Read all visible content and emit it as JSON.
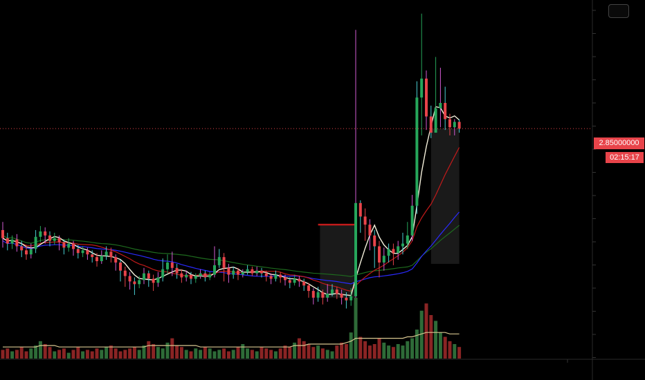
{
  "chart_data": {
    "type": "candlestick",
    "title": "",
    "current_price": "2.85000000",
    "countdown": "02:15:17",
    "price_line_value": 2.85,
    "ylim": [
      1.4,
      3.75
    ],
    "colors": {
      "up": "#26a65b",
      "down": "#e8444a",
      "wick_pink": "#d45bd4",
      "wick_cyan": "#49d0d4",
      "ma_fast": "#f5f0dc",
      "ma_red": "#c21a1a",
      "ma_blue": "#2a2aff",
      "ma_green": "#1e6b1e",
      "volume_ma": "#d8c690",
      "price_line": "#e8444a"
    },
    "candles": [
      [
        2.1,
        2.04,
        2.16,
        1.97
      ],
      [
        2.04,
        2.0,
        2.08,
        1.95
      ],
      [
        2.0,
        2.03,
        2.06,
        1.96
      ],
      [
        2.03,
        1.98,
        2.07,
        1.94
      ],
      [
        1.98,
        1.95,
        2.02,
        1.9
      ],
      [
        1.95,
        1.92,
        1.99,
        1.88
      ],
      [
        1.92,
        1.96,
        2.0,
        1.89
      ],
      [
        1.96,
        2.05,
        2.1,
        1.93
      ],
      [
        2.05,
        2.09,
        2.13,
        2.01
      ],
      [
        2.09,
        2.06,
        2.12,
        2.0
      ],
      [
        2.06,
        2.02,
        2.09,
        1.98
      ],
      [
        2.02,
        2.04,
        2.08,
        1.99
      ],
      [
        2.04,
        2.01,
        2.06,
        1.95
      ],
      [
        2.01,
        1.97,
        2.03,
        1.92
      ],
      [
        1.97,
        2.0,
        2.04,
        1.94
      ],
      [
        2.0,
        1.96,
        2.02,
        1.91
      ],
      [
        1.96,
        1.93,
        1.99,
        1.89
      ],
      [
        1.93,
        1.95,
        1.98,
        1.9
      ],
      [
        1.95,
        1.92,
        1.97,
        1.88
      ],
      [
        1.92,
        1.9,
        1.95,
        1.86
      ],
      [
        1.9,
        1.87,
        1.93,
        1.83
      ],
      [
        1.87,
        1.91,
        1.95,
        1.85
      ],
      [
        1.91,
        1.94,
        1.98,
        1.88
      ],
      [
        1.94,
        1.9,
        1.97,
        1.86
      ],
      [
        1.9,
        1.86,
        1.92,
        1.8
      ],
      [
        1.86,
        1.8,
        1.88,
        1.72
      ],
      [
        1.8,
        1.76,
        1.83,
        1.68
      ],
      [
        1.76,
        1.72,
        1.79,
        1.66
      ],
      [
        1.72,
        1.7,
        1.75,
        1.62
      ],
      [
        1.7,
        1.73,
        1.76,
        1.67
      ],
      [
        1.73,
        1.78,
        1.82,
        1.7
      ],
      [
        1.78,
        1.74,
        1.8,
        1.68
      ],
      [
        1.74,
        1.71,
        1.77,
        1.65
      ],
      [
        1.71,
        1.75,
        1.79,
        1.68
      ],
      [
        1.75,
        1.81,
        1.89,
        1.72
      ],
      [
        1.81,
        1.86,
        1.92,
        1.78
      ],
      [
        1.86,
        1.82,
        1.94,
        1.76
      ],
      [
        1.82,
        1.78,
        1.85,
        1.74
      ],
      [
        1.78,
        1.75,
        1.81,
        1.71
      ],
      [
        1.75,
        1.77,
        1.8,
        1.72
      ],
      [
        1.77,
        1.74,
        1.79,
        1.7
      ],
      [
        1.74,
        1.76,
        1.78,
        1.71
      ],
      [
        1.76,
        1.78,
        1.81,
        1.74
      ],
      [
        1.78,
        1.75,
        1.8,
        1.72
      ],
      [
        1.75,
        1.77,
        1.79,
        1.73
      ],
      [
        1.77,
        1.84,
        1.98,
        1.75
      ],
      [
        1.84,
        1.9,
        1.96,
        1.82
      ],
      [
        1.9,
        1.82,
        1.93,
        1.72
      ],
      [
        1.82,
        1.77,
        1.85,
        1.71
      ],
      [
        1.77,
        1.8,
        1.83,
        1.74
      ],
      [
        1.8,
        1.77,
        1.82,
        1.73
      ],
      [
        1.77,
        1.79,
        1.81,
        1.75
      ],
      [
        1.79,
        1.81,
        1.84,
        1.77
      ],
      [
        1.81,
        1.78,
        1.83,
        1.76
      ],
      [
        1.78,
        1.8,
        1.83,
        1.76
      ],
      [
        1.8,
        1.78,
        1.82,
        1.75
      ],
      [
        1.78,
        1.76,
        1.8,
        1.72
      ],
      [
        1.76,
        1.74,
        1.78,
        1.7
      ],
      [
        1.74,
        1.77,
        1.8,
        1.72
      ],
      [
        1.77,
        1.75,
        1.79,
        1.71
      ],
      [
        1.75,
        1.73,
        1.77,
        1.69
      ],
      [
        1.73,
        1.71,
        1.75,
        1.67
      ],
      [
        1.71,
        1.74,
        1.77,
        1.69
      ],
      [
        1.74,
        1.72,
        1.76,
        1.68
      ],
      [
        1.72,
        1.69,
        1.74,
        1.65
      ],
      [
        1.69,
        1.65,
        1.71,
        1.6
      ],
      [
        1.65,
        1.6,
        1.67,
        1.55
      ],
      [
        1.6,
        1.64,
        1.68,
        1.57
      ],
      [
        1.64,
        1.6,
        1.66,
        1.55
      ],
      [
        1.6,
        1.63,
        1.7,
        1.57
      ],
      [
        1.63,
        1.66,
        1.7,
        1.61
      ],
      [
        1.66,
        1.63,
        1.68,
        1.59
      ],
      [
        1.63,
        1.6,
        1.66,
        1.55
      ],
      [
        1.6,
        1.58,
        1.64,
        1.52
      ],
      [
        1.58,
        1.61,
        1.67,
        1.54
      ],
      [
        1.61,
        2.3,
        3.58,
        1.57
      ],
      [
        2.3,
        2.2,
        2.32,
        2.08
      ],
      [
        2.2,
        2.14,
        2.26,
        2.02
      ],
      [
        2.14,
        2.06,
        2.18,
        1.95
      ],
      [
        2.06,
        1.98,
        2.1,
        1.82
      ],
      [
        1.98,
        1.86,
        2.02,
        1.75
      ],
      [
        1.86,
        1.91,
        1.97,
        1.8
      ],
      [
        1.91,
        1.96,
        2.0,
        1.86
      ],
      [
        1.96,
        1.93,
        2.0,
        1.84
      ],
      [
        1.93,
        1.98,
        2.02,
        1.88
      ],
      [
        1.98,
        2.0,
        2.08,
        1.92
      ],
      [
        2.0,
        2.06,
        2.16,
        1.96
      ],
      [
        2.06,
        2.28,
        2.36,
        2.02
      ],
      [
        2.28,
        3.08,
        3.2,
        2.22
      ],
      [
        3.08,
        3.22,
        3.7,
        2.8
      ],
      [
        3.22,
        2.94,
        3.28,
        2.84
      ],
      [
        2.94,
        2.82,
        3.02,
        2.78
      ],
      [
        2.82,
        3.0,
        3.38,
        2.86
      ],
      [
        3.0,
        3.04,
        3.3,
        2.86
      ],
      [
        3.04,
        2.92,
        3.16,
        2.84
      ],
      [
        2.92,
        2.86,
        2.96,
        2.8
      ],
      [
        2.86,
        2.9,
        2.92,
        2.8
      ],
      [
        2.9,
        2.85,
        2.92,
        2.82
      ]
    ],
    "volumes": [
      6,
      7,
      5,
      6,
      8,
      5,
      7,
      9,
      12,
      10,
      8,
      5,
      6,
      7,
      4,
      6,
      8,
      5,
      6,
      5,
      7,
      6,
      8,
      9,
      7,
      5,
      6,
      7,
      8,
      6,
      9,
      12,
      10,
      8,
      7,
      11,
      14,
      9,
      8,
      6,
      5,
      7,
      6,
      8,
      7,
      5,
      6,
      7,
      5,
      6,
      8,
      10,
      7,
      6,
      5,
      8,
      7,
      6,
      5,
      7,
      9,
      8,
      11,
      14,
      12,
      10,
      8,
      9,
      7,
      6,
      5,
      9,
      11,
      10,
      18,
      42,
      15,
      12,
      9,
      10,
      14,
      11,
      9,
      8,
      10,
      9,
      12,
      14,
      20,
      33,
      38,
      30,
      26,
      18,
      15,
      12,
      10,
      8
    ],
    "volume_ma": [
      8,
      8,
      8,
      8,
      8,
      8,
      8,
      8,
      9,
      9,
      9,
      9,
      8,
      8,
      8,
      8,
      8,
      8,
      8,
      8,
      8,
      8,
      8,
      8,
      8,
      8,
      8,
      8,
      8,
      8,
      8,
      9,
      9,
      9,
      9,
      9,
      9,
      9,
      9,
      9,
      9,
      9,
      8,
      8,
      8,
      8,
      8,
      8,
      8,
      8,
      8,
      8,
      8,
      8,
      8,
      8,
      8,
      8,
      8,
      8,
      8,
      8,
      9,
      9,
      9,
      10,
      10,
      10,
      10,
      10,
      10,
      10,
      10,
      11,
      12,
      14,
      14,
      14,
      14,
      14,
      14,
      14,
      14,
      14,
      14,
      14,
      15,
      15,
      16,
      17,
      18,
      18,
      18,
      18,
      18,
      17,
      17,
      17
    ]
  }
}
